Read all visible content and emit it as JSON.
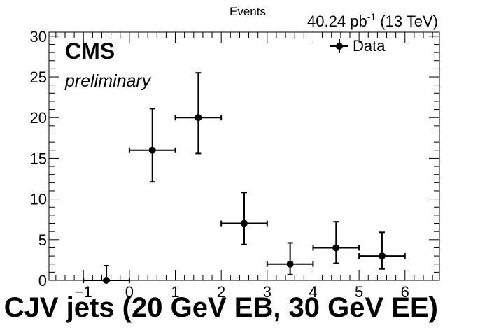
{
  "chart_data": {
    "type": "scatter",
    "title": "",
    "xlabel": "CJV jets (20 GeV EB, 30 GeV EE)",
    "ylabel": "Events",
    "xlim": [
      -1.75,
      6.75
    ],
    "ylim": [
      0,
      30.5
    ],
    "x_ticks": [
      -1,
      0,
      1,
      2,
      3,
      4,
      5,
      6
    ],
    "x_tick_labels": [
      "−1",
      "0",
      "1",
      "2",
      "3",
      "4",
      "5",
      "6"
    ],
    "y_ticks": [
      0,
      5,
      10,
      15,
      20,
      25,
      30
    ],
    "y_tick_labels": [
      "0",
      "5",
      "10",
      "15",
      "20",
      "25",
      "30"
    ],
    "lumi_value": "40.24 pb",
    "lumi_exponent": "-1",
    "lumi_energy": " (13 TeV)",
    "experiment": "CMS",
    "status": "preliminary",
    "legend_position": "top-right",
    "series": [
      {
        "name": "Data",
        "points": [
          {
            "x": -0.5,
            "xerr": 0.5,
            "y": 0,
            "yerr_low": 0,
            "yerr_high": 1.8
          },
          {
            "x": 0.5,
            "xerr": 0.5,
            "y": 16,
            "yerr_low": 3.9,
            "yerr_high": 5.1
          },
          {
            "x": 1.5,
            "xerr": 0.5,
            "y": 20,
            "yerr_low": 4.4,
            "yerr_high": 5.5
          },
          {
            "x": 2.5,
            "xerr": 0.5,
            "y": 7,
            "yerr_low": 2.6,
            "yerr_high": 3.8
          },
          {
            "x": 3.5,
            "xerr": 0.5,
            "y": 2,
            "yerr_low": 1.3,
            "yerr_high": 2.6
          },
          {
            "x": 4.5,
            "xerr": 0.5,
            "y": 4,
            "yerr_low": 1.9,
            "yerr_high": 3.2
          },
          {
            "x": 5.5,
            "xerr": 0.5,
            "y": 3,
            "yerr_low": 1.6,
            "yerr_high": 2.9
          }
        ]
      }
    ]
  }
}
